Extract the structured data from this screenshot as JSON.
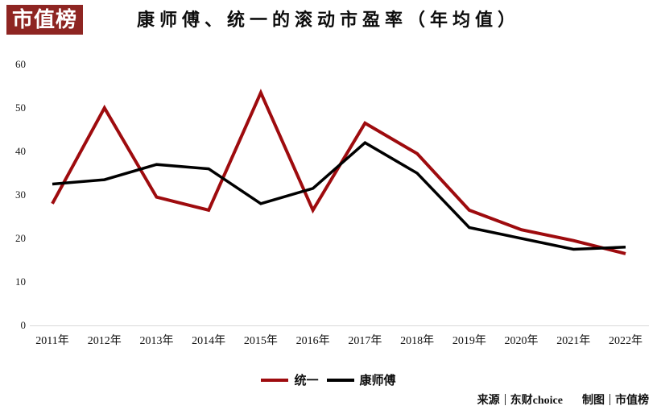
{
  "logo": {
    "text": "市值榜"
  },
  "title": "康师傅、统一的滚动市盈率（年均值）",
  "chart_data": {
    "type": "line",
    "categories": [
      "2011年",
      "2012年",
      "2013年",
      "2014年",
      "2015年",
      "2016年",
      "2017年",
      "2018年",
      "2019年",
      "2020年",
      "2021年",
      "2022年"
    ],
    "series": [
      {
        "name": "统一",
        "color": "#9e0b0e",
        "values": [
          28,
          50,
          29.5,
          26.5,
          53.5,
          26.5,
          46.5,
          39.5,
          26.5,
          22,
          19.5,
          16.5
        ]
      },
      {
        "name": "康师傅",
        "color": "#000000",
        "values": [
          32.5,
          33.5,
          37,
          36,
          28,
          31.5,
          42,
          35,
          22.5,
          20,
          17.5,
          18
        ]
      }
    ],
    "title": "康师傅、统一的滚动市盈率（年均值）",
    "xlabel": "",
    "ylabel": "",
    "ylim": [
      0,
      60
    ],
    "yticks": [
      0,
      10,
      20,
      30,
      40,
      50,
      60
    ],
    "grid": false,
    "legend_position": "bottom"
  },
  "colors": {
    "brand_background": "#8e2522",
    "line_red": "#9e0b0e",
    "line_black": "#000000",
    "axis_line": "#d9d9d9"
  },
  "footer": {
    "source_label": "来源",
    "source_value": "东财choice",
    "credit_label": "制图",
    "credit_value": "市值榜"
  }
}
